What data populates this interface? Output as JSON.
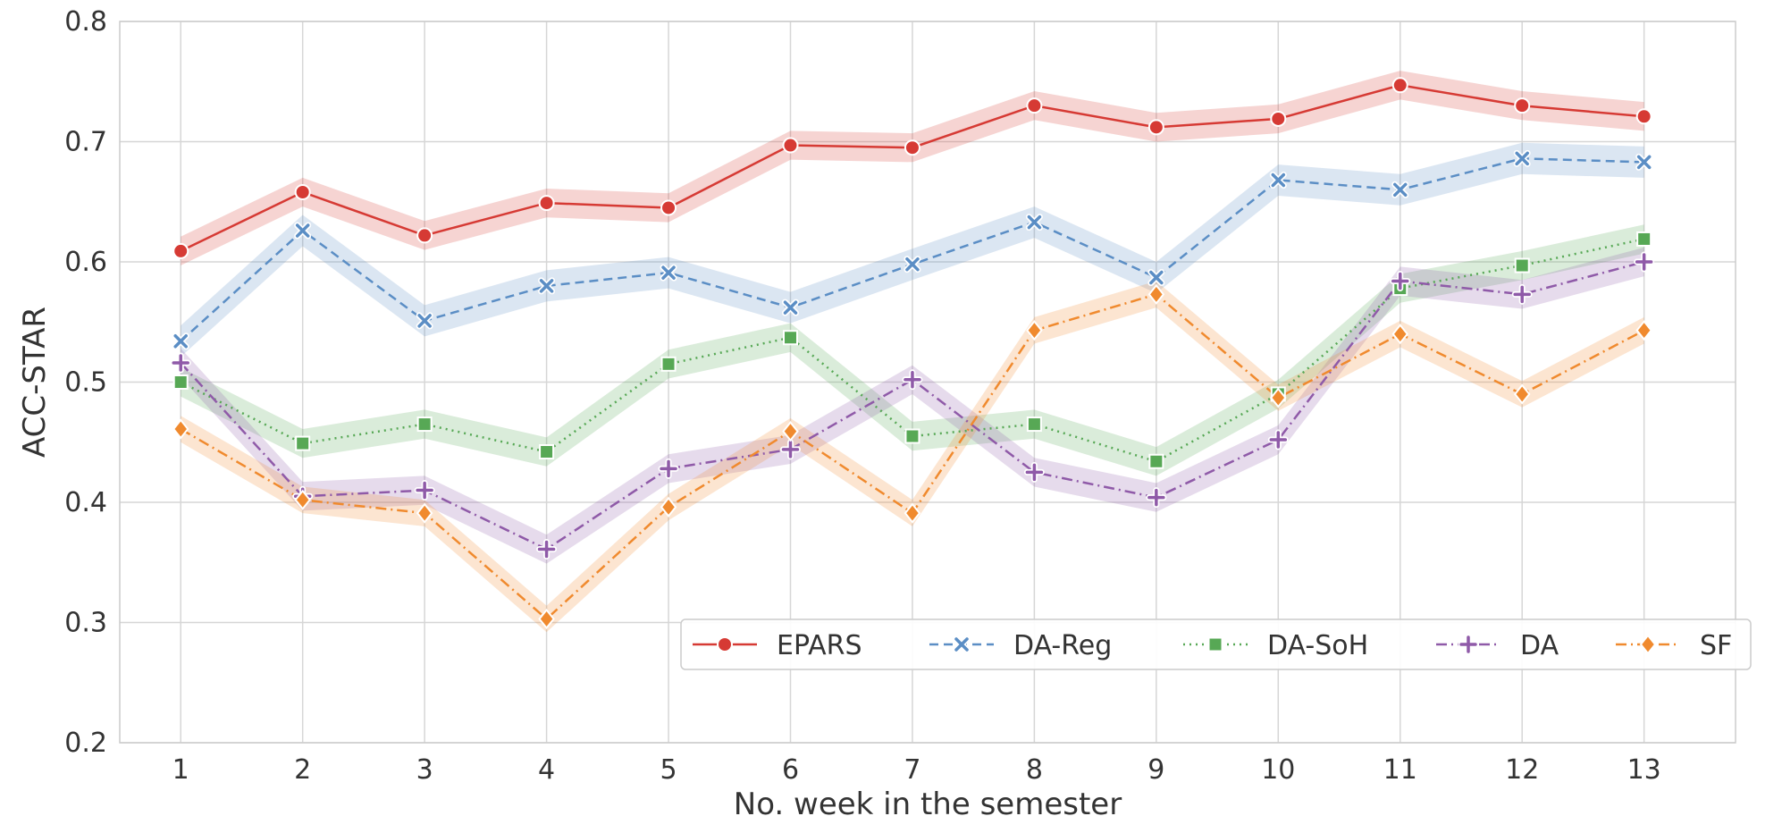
{
  "chart_data": {
    "type": "line",
    "xlabel": "No. week in the semester",
    "ylabel": "ACC-STAR",
    "ylim": [
      0.2,
      0.8
    ],
    "yticks": [
      "0.2",
      "0.3",
      "0.4",
      "0.5",
      "0.6",
      "0.7",
      "0.8"
    ],
    "x": [
      1,
      2,
      3,
      4,
      5,
      6,
      7,
      8,
      9,
      10,
      11,
      12,
      13
    ],
    "xticks": [
      "1",
      "2",
      "3",
      "4",
      "5",
      "6",
      "7",
      "8",
      "9",
      "10",
      "11",
      "12",
      "13"
    ],
    "grid": true,
    "legend_position": "bottom-right",
    "series": [
      {
        "name": "EPARS",
        "color": "#d63a34",
        "marker": "circle",
        "dash": "solid",
        "values": [
          0.609,
          0.658,
          0.622,
          0.649,
          0.645,
          0.697,
          0.695,
          0.73,
          0.712,
          0.719,
          0.747,
          0.73,
          0.721
        ],
        "band": 0.012
      },
      {
        "name": "DA-Reg",
        "color": "#5b8ec5",
        "marker": "x",
        "dash": "dashed",
        "values": [
          0.534,
          0.626,
          0.551,
          0.58,
          0.591,
          0.562,
          0.598,
          0.633,
          0.587,
          0.668,
          0.66,
          0.686,
          0.683
        ],
        "band": 0.013
      },
      {
        "name": "DA-SoH",
        "color": "#57a855",
        "marker": "square",
        "dash": "dotted",
        "values": [
          0.5,
          0.449,
          0.465,
          0.442,
          0.515,
          0.537,
          0.455,
          0.465,
          0.434,
          0.49,
          0.578,
          0.597,
          0.619
        ],
        "band": 0.012
      },
      {
        "name": "DA",
        "color": "#8f5aa8",
        "marker": "plus",
        "dash": "dashdot",
        "values": [
          0.516,
          0.405,
          0.41,
          0.361,
          0.428,
          0.444,
          0.502,
          0.425,
          0.404,
          0.452,
          0.584,
          0.573,
          0.6
        ],
        "band": 0.012
      },
      {
        "name": "SF",
        "color": "#f08a2e",
        "marker": "diamond",
        "dash": "dashdot",
        "values": [
          0.461,
          0.402,
          0.391,
          0.303,
          0.396,
          0.459,
          0.391,
          0.543,
          0.573,
          0.487,
          0.54,
          0.49,
          0.543
        ],
        "band": 0.011
      }
    ]
  }
}
